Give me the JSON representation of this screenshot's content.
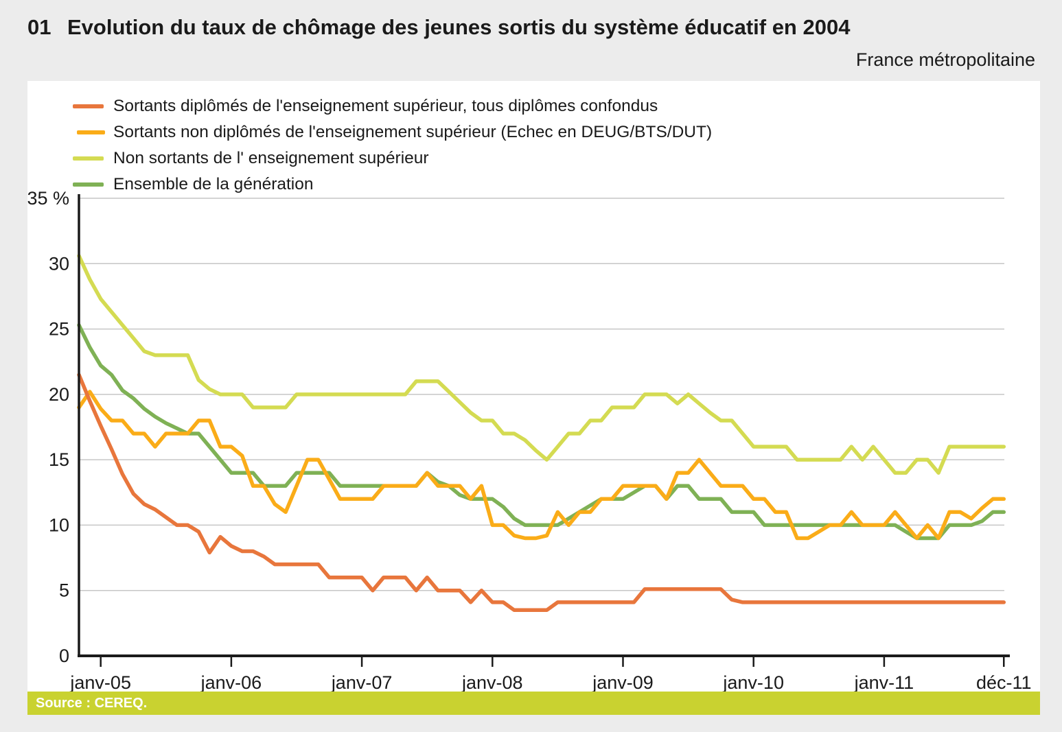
{
  "header": {
    "number": "01",
    "title": "Evolution du taux de chômage des jeunes sortis du système éducatif en 2004",
    "subtitle": "France métropolitaine"
  },
  "source": {
    "label": "Source : CEREQ."
  },
  "chart_data": {
    "type": "line",
    "title": "Evolution du taux de chômage des jeunes sortis du système éducatif en 2004",
    "xlabel": "",
    "ylabel": "%",
    "ylim": [
      0,
      35
    ],
    "grid": "horizontal",
    "legend_position": "top-left",
    "grid_color": "#C6C6C6",
    "axis_color": "#1A1A1A",
    "y_ticks": [
      {
        "label": "35 %",
        "value": 35
      },
      {
        "label": "30",
        "value": 30
      },
      {
        "label": "25",
        "value": 25
      },
      {
        "label": "20",
        "value": 20
      },
      {
        "label": "15",
        "value": 15
      },
      {
        "label": "10",
        "value": 10
      },
      {
        "label": "5",
        "value": 5
      },
      {
        "label": "0",
        "value": 0
      }
    ],
    "x": [
      "nov-04",
      "déc-04",
      "janv-05",
      "févr-05",
      "mars-05",
      "avr-05",
      "mai-05",
      "juin-05",
      "juil-05",
      "août-05",
      "sept-05",
      "oct-05",
      "nov-05",
      "déc-05",
      "janv-06",
      "févr-06",
      "mars-06",
      "avr-06",
      "mai-06",
      "juin-06",
      "juil-06",
      "août-06",
      "sept-06",
      "oct-06",
      "nov-06",
      "déc-06",
      "janv-07",
      "févr-07",
      "mars-07",
      "avr-07",
      "mai-07",
      "juin-07",
      "juil-07",
      "août-07",
      "sept-07",
      "oct-07",
      "nov-07",
      "déc-07",
      "janv-08",
      "févr-08",
      "mars-08",
      "avr-08",
      "mai-08",
      "juin-08",
      "juil-08",
      "août-08",
      "sept-08",
      "oct-08",
      "nov-08",
      "déc-08",
      "janv-09",
      "févr-09",
      "mars-09",
      "avr-09",
      "mai-09",
      "juin-09",
      "juil-09",
      "août-09",
      "sept-09",
      "oct-09",
      "nov-09",
      "déc-09",
      "janv-10",
      "févr-10",
      "mars-10",
      "avr-10",
      "mai-10",
      "juin-10",
      "juil-10",
      "août-10",
      "sept-10",
      "oct-10",
      "nov-10",
      "déc-10",
      "janv-11",
      "févr-11",
      "mars-11",
      "avr-11",
      "mai-11",
      "juin-11",
      "juil-11",
      "août-11",
      "sept-11",
      "oct-11",
      "nov-11",
      "déc-11"
    ],
    "x_ticks": [
      {
        "label": "janv-05",
        "index": 2
      },
      {
        "label": "janv-06",
        "index": 14
      },
      {
        "label": "janv-07",
        "index": 26
      },
      {
        "label": "janv-08",
        "index": 38
      },
      {
        "label": "janv-09",
        "index": 50
      },
      {
        "label": "janv-10",
        "index": 62
      },
      {
        "label": "janv-11",
        "index": 74
      },
      {
        "label": "déc-11",
        "index": 85
      }
    ],
    "series": [
      {
        "name": "Sortants diplômés de l'enseignement supérieur, tous diplômes confondus",
        "color": "#E8763C",
        "values": [
          21.5,
          19.5,
          17.6,
          15.8,
          13.9,
          12.4,
          11.6,
          11.2,
          10.6,
          10.0,
          10.0,
          9.5,
          7.9,
          9.1,
          8.4,
          8.0,
          8.0,
          7.6,
          7.0,
          7.0,
          7.0,
          7.0,
          7.0,
          6.0,
          6.0,
          6.0,
          6.0,
          5.0,
          6.0,
          6.0,
          6.0,
          5.0,
          6.0,
          5.0,
          5.0,
          5.0,
          4.1,
          5.0,
          4.1,
          4.1,
          3.5,
          3.5,
          3.5,
          3.5,
          4.1,
          4.1,
          4.1,
          4.1,
          4.1,
          4.1,
          4.1,
          4.1,
          5.1,
          5.1,
          5.1,
          5.1,
          5.1,
          5.1,
          5.1,
          5.1,
          4.3,
          4.1,
          4.1,
          4.1,
          4.1,
          4.1,
          4.1,
          4.1,
          4.1,
          4.1,
          4.1,
          4.1,
          4.1,
          4.1,
          4.1,
          4.1,
          4.1,
          4.1,
          4.1,
          4.1,
          4.1,
          4.1,
          4.1,
          4.1,
          4.1,
          4.1
        ]
      },
      {
        "name": "Sortants non diplômés de l'enseignement supérieur (Echec en DEUG/BTS/DUT)",
        "color": "#FAAC18",
        "values": [
          19.0,
          20.2,
          18.9,
          18.0,
          18.0,
          17.0,
          17.0,
          16.0,
          17.0,
          17.0,
          17.0,
          18.0,
          18.0,
          16.0,
          16.0,
          15.3,
          13.0,
          13.0,
          11.6,
          11.0,
          13.0,
          15.0,
          15.0,
          13.5,
          12.0,
          12.0,
          12.0,
          12.0,
          13.0,
          13.0,
          13.0,
          13.0,
          14.0,
          13.0,
          13.0,
          13.0,
          12.0,
          13.0,
          10.0,
          10.0,
          9.2,
          9.0,
          9.0,
          9.2,
          11.0,
          10.0,
          11.0,
          11.0,
          12.0,
          12.0,
          13.0,
          13.0,
          13.0,
          13.0,
          12.0,
          14.0,
          14.0,
          15.0,
          14.0,
          13.0,
          13.0,
          13.0,
          12.0,
          12.0,
          11.0,
          11.0,
          9.0,
          9.0,
          9.5,
          10.0,
          10.0,
          11.0,
          10.0,
          10.0,
          10.0,
          11.0,
          10.0,
          9.0,
          10.0,
          9.0,
          11.0,
          11.0,
          10.5,
          11.3,
          12.0,
          12.0
        ]
      },
      {
        "name": "Non sortants de l' enseignement supérieur",
        "color": "#D4DB52",
        "values": [
          30.6,
          28.8,
          27.3,
          26.3,
          25.3,
          24.3,
          23.3,
          23.0,
          23.0,
          23.0,
          23.0,
          21.1,
          20.4,
          20.0,
          20.0,
          20.0,
          19.0,
          19.0,
          19.0,
          19.0,
          20.0,
          20.0,
          20.0,
          20.0,
          20.0,
          20.0,
          20.0,
          20.0,
          20.0,
          20.0,
          20.0,
          21.0,
          21.0,
          21.0,
          20.2,
          19.4,
          18.6,
          18.0,
          18.0,
          17.0,
          17.0,
          16.5,
          15.7,
          15.0,
          16.0,
          17.0,
          17.0,
          18.0,
          18.0,
          19.0,
          19.0,
          19.0,
          20.0,
          20.0,
          20.0,
          19.3,
          20.0,
          19.3,
          18.6,
          18.0,
          18.0,
          17.0,
          16.0,
          16.0,
          16.0,
          16.0,
          15.0,
          15.0,
          15.0,
          15.0,
          15.0,
          16.0,
          15.0,
          16.0,
          15.0,
          14.0,
          14.0,
          15.0,
          15.0,
          14.0,
          16.0,
          16.0,
          16.0,
          16.0,
          16.0,
          16.0
        ]
      },
      {
        "name": "Ensemble de la génération",
        "color": "#7FB155",
        "values": [
          25.3,
          23.6,
          22.2,
          21.5,
          20.3,
          19.7,
          18.9,
          18.3,
          17.8,
          17.4,
          17.0,
          17.0,
          16.0,
          15.0,
          14.0,
          14.0,
          14.0,
          13.0,
          13.0,
          13.0,
          14.0,
          14.0,
          14.0,
          14.0,
          13.0,
          13.0,
          13.0,
          13.0,
          13.0,
          13.0,
          13.0,
          13.0,
          14.0,
          13.3,
          13.0,
          12.3,
          12.0,
          12.0,
          12.0,
          11.4,
          10.5,
          10.0,
          10.0,
          10.0,
          10.0,
          10.5,
          11.0,
          11.5,
          12.0,
          12.0,
          12.0,
          12.5,
          13.0,
          13.0,
          12.0,
          13.0,
          13.0,
          12.0,
          12.0,
          12.0,
          11.0,
          11.0,
          11.0,
          10.0,
          10.0,
          10.0,
          10.0,
          10.0,
          10.0,
          10.0,
          10.0,
          10.0,
          10.0,
          10.0,
          10.0,
          10.0,
          9.5,
          9.0,
          9.0,
          9.0,
          10.0,
          10.0,
          10.0,
          10.3,
          11.0,
          11.0
        ]
      }
    ]
  }
}
